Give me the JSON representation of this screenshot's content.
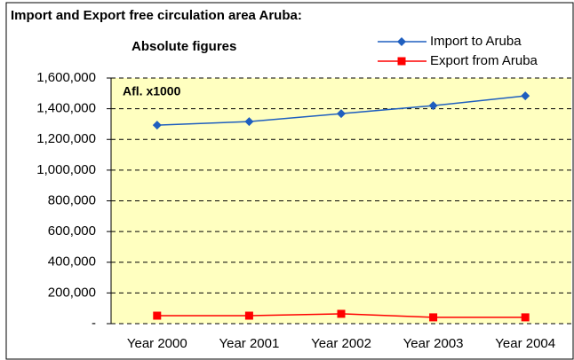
{
  "chart_data": {
    "type": "line",
    "title": "Import and Export free circulation area Aruba:",
    "subtitle": "Absolute figures",
    "annotation": "Afl. x1000",
    "categories": [
      "Year 2000",
      "Year 2001",
      "Year 2002",
      "Year 2003",
      "Year 2004"
    ],
    "series": [
      {
        "name": "Import to Aruba",
        "color": "#1f5fbf",
        "marker": "diamond",
        "values": [
          1293000,
          1316000,
          1368000,
          1420000,
          1484000
        ]
      },
      {
        "name": "Export from Aruba",
        "color": "#ff0000",
        "marker": "square",
        "values": [
          52000,
          52000,
          64000,
          41000,
          41000
        ]
      }
    ],
    "ylim": [
      0,
      1600000
    ],
    "yticks": [
      {
        "value": 0,
        "label": "-"
      },
      {
        "value": 200000,
        "label": "200,000"
      },
      {
        "value": 400000,
        "label": "400,000"
      },
      {
        "value": 600000,
        "label": "600,000"
      },
      {
        "value": 800000,
        "label": "800,000"
      },
      {
        "value": 1000000,
        "label": "1,000,000"
      },
      {
        "value": 1200000,
        "label": "1,200,000"
      },
      {
        "value": 1400000,
        "label": "1,400,000"
      },
      {
        "value": 1600000,
        "label": "1,600,000"
      }
    ],
    "grid": true,
    "legend": "top-right"
  }
}
